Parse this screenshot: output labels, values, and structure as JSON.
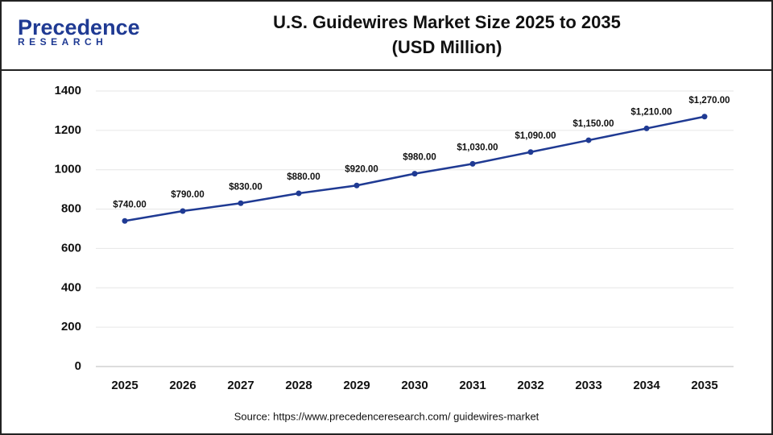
{
  "logo": {
    "name": "Precedence",
    "tagline": "RESEARCH"
  },
  "chart_data": {
    "type": "line",
    "title": "U.S. Guidewires Market Size 2025 to 2035",
    "subtitle": "(USD Million)",
    "categories": [
      "2025",
      "2026",
      "2027",
      "2028",
      "2029",
      "2030",
      "2031",
      "2032",
      "2033",
      "2034",
      "2035"
    ],
    "series": [
      {
        "name": "U.S. Guidewires Market Size",
        "color": "#1f3a93",
        "values": [
          740,
          790,
          830,
          880,
          920,
          980,
          1030,
          1090,
          1150,
          1210,
          1270
        ],
        "value_labels": [
          "$740.00",
          "$790.00",
          "$830.00",
          "$880.00",
          "$920.00",
          "$980.00",
          "$1,030.00",
          "$1,090.00",
          "$1,150.00",
          "$1,210.00",
          "$1,270.00"
        ]
      }
    ],
    "ylim": [
      0,
      1400
    ],
    "yticks": [
      0,
      200,
      400,
      600,
      800,
      1000,
      1200,
      1400
    ],
    "grid": true,
    "source": "Source: https://www.precedenceresearch.com/ guidewires-market"
  }
}
